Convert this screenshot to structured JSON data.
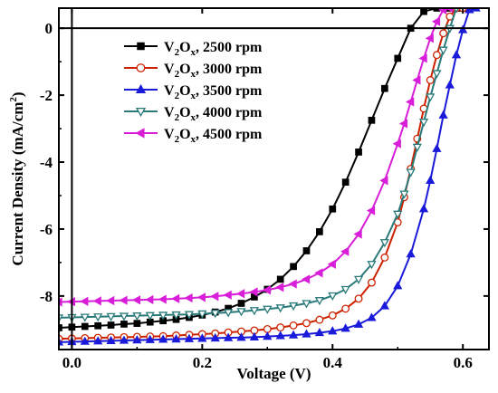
{
  "chart_data": {
    "type": "line",
    "xlabel": "Voltage (V)",
    "ylabel": "Current Density (mA/cm",
    "ylabel_sup": "2",
    "ylabel_close": ")",
    "xlim": [
      -0.02,
      0.64
    ],
    "ylim": [
      -9.6,
      0.6
    ],
    "x_ticks": [
      0.0,
      0.2,
      0.4,
      0.6
    ],
    "x_tick_labels": [
      "0.0",
      "0.2",
      "0.4",
      "0.6"
    ],
    "y_ticks": [
      0,
      -2,
      -4,
      -6,
      -8
    ],
    "y_tick_labels": [
      "0",
      "-2",
      "-4",
      "-6",
      "-8"
    ],
    "legend_position": "top-left",
    "zero_lines": true,
    "series": [
      {
        "name_parts": [
          "V",
          "2",
          "O",
          "x",
          ", 2500 rpm"
        ],
        "color": "#000000",
        "marker": "square",
        "x": [
          -0.02,
          0.0,
          0.02,
          0.04,
          0.06,
          0.08,
          0.1,
          0.12,
          0.14,
          0.16,
          0.18,
          0.2,
          0.22,
          0.24,
          0.26,
          0.28,
          0.3,
          0.32,
          0.34,
          0.36,
          0.38,
          0.4,
          0.42,
          0.44,
          0.46,
          0.48,
          0.5,
          0.52,
          0.54,
          0.56,
          0.58,
          0.59,
          0.6
        ],
        "y": [
          -8.95,
          -8.93,
          -8.91,
          -8.89,
          -8.87,
          -8.84,
          -8.82,
          -8.78,
          -8.74,
          -8.7,
          -8.64,
          -8.57,
          -8.48,
          -8.37,
          -8.22,
          -8.03,
          -7.8,
          -7.5,
          -7.12,
          -6.65,
          -6.08,
          -5.4,
          -4.6,
          -3.7,
          -2.75,
          -1.8,
          -0.9,
          0.0,
          0.5,
          0.6,
          0.6,
          0.6,
          0.6
        ]
      },
      {
        "name_parts": [
          "V",
          "2",
          "O",
          "x",
          ", 3000 rpm"
        ],
        "color": "#cc2200",
        "marker": "circle-open",
        "x": [
          -0.02,
          0.0,
          0.02,
          0.04,
          0.06,
          0.08,
          0.1,
          0.12,
          0.14,
          0.16,
          0.18,
          0.2,
          0.22,
          0.24,
          0.26,
          0.28,
          0.3,
          0.32,
          0.34,
          0.36,
          0.38,
          0.4,
          0.42,
          0.44,
          0.46,
          0.48,
          0.5,
          0.51,
          0.52,
          0.53,
          0.54,
          0.55,
          0.56,
          0.57,
          0.58,
          0.59,
          0.6
        ],
        "y": [
          -9.28,
          -9.27,
          -9.26,
          -9.25,
          -9.24,
          -9.23,
          -9.22,
          -9.21,
          -9.2,
          -9.18,
          -9.16,
          -9.14,
          -9.12,
          -9.09,
          -9.06,
          -9.03,
          -8.99,
          -8.94,
          -8.88,
          -8.81,
          -8.71,
          -8.58,
          -8.38,
          -8.08,
          -7.6,
          -6.85,
          -5.8,
          -5.05,
          -4.2,
          -3.3,
          -2.4,
          -1.55,
          -0.8,
          -0.15,
          0.35,
          0.6,
          0.6
        ]
      },
      {
        "name_parts": [
          "V",
          "2",
          "O",
          "x",
          ", 3500 rpm"
        ],
        "color": "#1a1adb",
        "marker": "triangle-up",
        "x": [
          -0.02,
          0.0,
          0.02,
          0.04,
          0.06,
          0.08,
          0.1,
          0.12,
          0.14,
          0.16,
          0.18,
          0.2,
          0.22,
          0.24,
          0.26,
          0.28,
          0.3,
          0.32,
          0.34,
          0.36,
          0.38,
          0.4,
          0.42,
          0.44,
          0.46,
          0.48,
          0.5,
          0.52,
          0.54,
          0.55,
          0.56,
          0.57,
          0.58,
          0.59,
          0.6,
          0.61,
          0.62
        ],
        "y": [
          -9.38,
          -9.37,
          -9.36,
          -9.35,
          -9.34,
          -9.33,
          -9.32,
          -9.31,
          -9.3,
          -9.29,
          -9.28,
          -9.27,
          -9.26,
          -9.25,
          -9.24,
          -9.23,
          -9.21,
          -9.19,
          -9.17,
          -9.14,
          -9.1,
          -9.05,
          -8.97,
          -8.85,
          -8.65,
          -8.3,
          -7.7,
          -6.75,
          -5.4,
          -4.55,
          -3.6,
          -2.6,
          -1.7,
          -0.8,
          -0.05,
          0.55,
          0.6
        ]
      },
      {
        "name_parts": [
          "V",
          "2",
          "O",
          "x",
          ", 4000 rpm"
        ],
        "color": "#2a7a7a",
        "marker": "triangle-down-open",
        "x": [
          -0.02,
          0.0,
          0.02,
          0.04,
          0.06,
          0.08,
          0.1,
          0.12,
          0.14,
          0.16,
          0.18,
          0.2,
          0.22,
          0.24,
          0.26,
          0.28,
          0.3,
          0.32,
          0.34,
          0.36,
          0.38,
          0.4,
          0.42,
          0.44,
          0.46,
          0.48,
          0.5,
          0.51,
          0.52,
          0.53,
          0.54,
          0.55,
          0.56,
          0.57,
          0.58,
          0.59
        ],
        "y": [
          -8.65,
          -8.64,
          -8.63,
          -8.62,
          -8.61,
          -8.6,
          -8.59,
          -8.58,
          -8.57,
          -8.56,
          -8.55,
          -8.53,
          -8.51,
          -8.49,
          -8.46,
          -8.43,
          -8.39,
          -8.35,
          -8.29,
          -8.22,
          -8.13,
          -7.99,
          -7.8,
          -7.5,
          -7.05,
          -6.4,
          -5.55,
          -4.95,
          -4.3,
          -3.55,
          -2.8,
          -2.05,
          -1.35,
          -0.65,
          0.0,
          0.6
        ]
      },
      {
        "name_parts": [
          "V",
          "2",
          "O",
          "x",
          ", 4500 rpm"
        ],
        "color": "#d81ed8",
        "marker": "triangle-left",
        "x": [
          -0.02,
          0.0,
          0.02,
          0.04,
          0.06,
          0.08,
          0.1,
          0.12,
          0.14,
          0.16,
          0.18,
          0.2,
          0.22,
          0.24,
          0.26,
          0.28,
          0.3,
          0.32,
          0.34,
          0.36,
          0.38,
          0.4,
          0.42,
          0.44,
          0.46,
          0.48,
          0.5,
          0.51,
          0.52,
          0.53,
          0.54,
          0.55,
          0.56,
          0.57,
          0.58
        ],
        "y": [
          -8.18,
          -8.17,
          -8.16,
          -8.15,
          -8.14,
          -8.13,
          -8.12,
          -8.11,
          -8.1,
          -8.08,
          -8.06,
          -8.04,
          -8.01,
          -7.97,
          -7.93,
          -7.88,
          -7.82,
          -7.74,
          -7.64,
          -7.5,
          -7.31,
          -7.05,
          -6.67,
          -6.15,
          -5.45,
          -4.55,
          -3.45,
          -2.85,
          -2.2,
          -1.55,
          -0.9,
          -0.3,
          0.2,
          0.55,
          0.6
        ]
      }
    ]
  }
}
